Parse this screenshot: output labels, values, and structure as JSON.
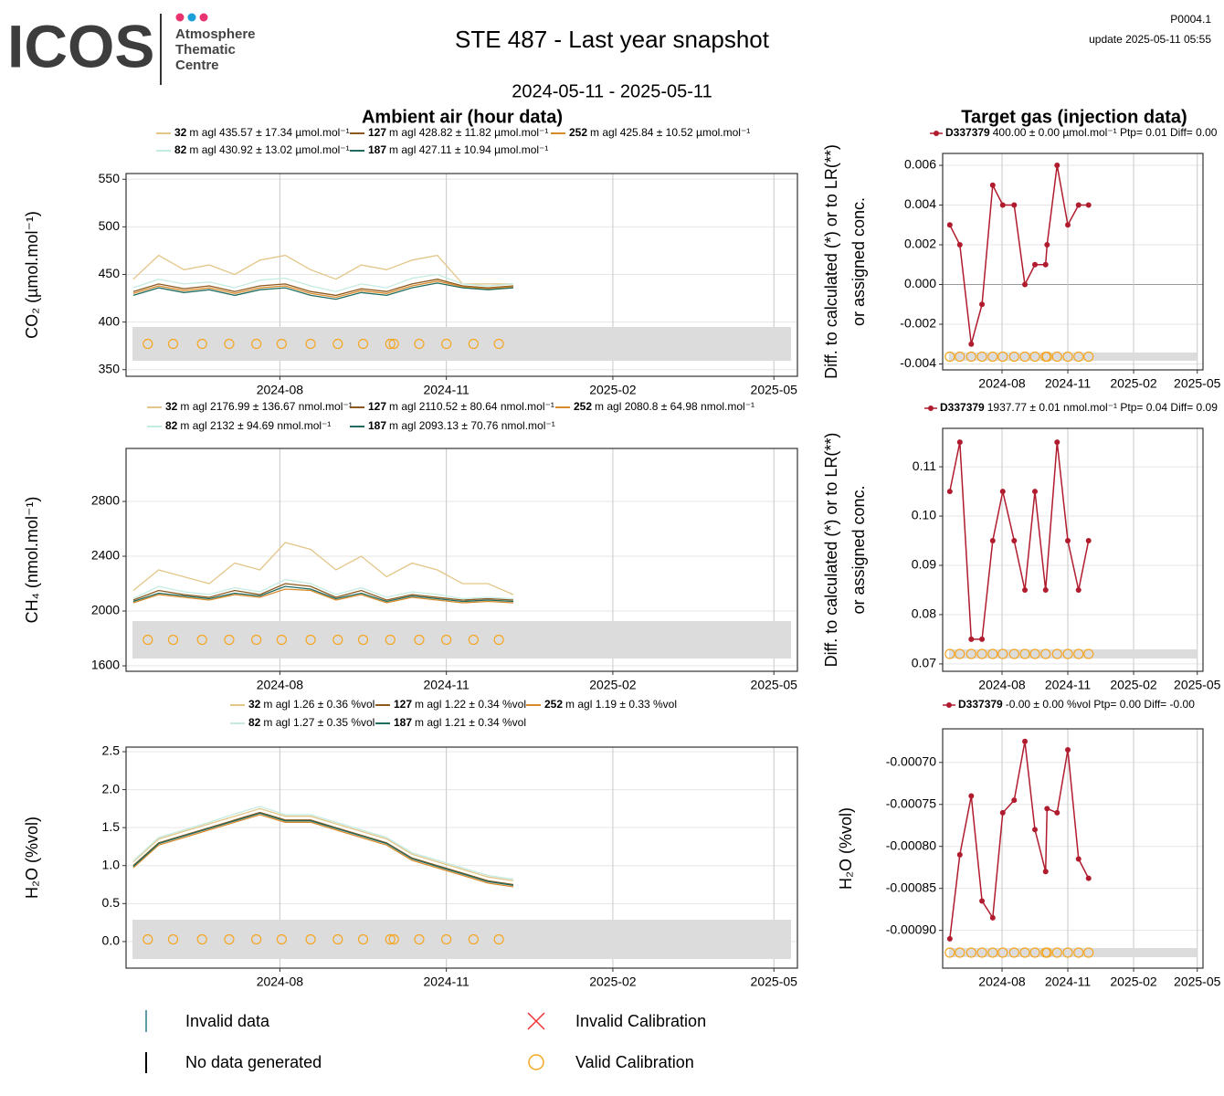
{
  "header": {
    "logo": "ICOS",
    "org": [
      "Atmosphere",
      "Thematic",
      "Centre"
    ],
    "title": "STE 487 - Last year snapshot",
    "subtitle": "2024-05-11 - 2025-05-11",
    "code": "P0004.1",
    "update": "update  2025-05-11 05:55",
    "ambient": "Ambient air (hour data)",
    "target": "Target gas (injection data)"
  },
  "legend": {
    "invalid_data": "Invalid data",
    "no_data": "No data generated",
    "invalid_cal": "Invalid Calibration",
    "valid_cal": "Valid Calibration"
  },
  "chart_data": [
    {
      "type": "line",
      "ylabel": [
        "CO₂ (µmol.mol⁻¹)"
      ],
      "x": [
        "2024-05-12",
        "2024-05-26",
        "2024-06-09",
        "2024-06-23",
        "2024-07-07",
        "2024-07-21",
        "2024-08-04",
        "2024-08-18",
        "2024-09-01",
        "2024-09-15",
        "2024-09-29",
        "2024-10-13",
        "2024-10-27",
        "2024-11-10",
        "2024-11-24",
        "2024-12-08"
      ],
      "xlim": [
        "2024-05-08",
        "2025-05-14"
      ],
      "xticks": [
        {
          "value": "2024-08-01",
          "label": "2024-08"
        },
        {
          "value": "2024-11-01",
          "label": "2024-11"
        },
        {
          "value": "2025-02-01",
          "label": "2025-02"
        },
        {
          "value": "2025-05-01",
          "label": "2025-05"
        }
      ],
      "ylim": [
        343,
        556
      ],
      "yticks": [
        350,
        400,
        450,
        500,
        550
      ],
      "grid": true,
      "series": [
        {
          "name": "32",
          "label": "m agl 435.57 ± 17.34 µmol.mol⁻¹",
          "color": "#e3c688",
          "values": [
            445,
            470,
            455,
            460,
            450,
            465,
            470,
            455,
            445,
            460,
            455,
            465,
            470,
            440,
            440,
            440
          ]
        },
        {
          "name": "127",
          "label": "m agl 428.82 ± 11.82 µmol.mol⁻¹",
          "color": "#8c5a1e",
          "values": [
            432,
            440,
            435,
            438,
            432,
            438,
            440,
            432,
            428,
            435,
            432,
            440,
            445,
            438,
            436,
            438
          ]
        },
        {
          "name": "252",
          "label": "m agl 425.84 ± 10.52 µmol.mol⁻¹",
          "color": "#d98a2b",
          "values": [
            430,
            438,
            433,
            436,
            430,
            436,
            438,
            430,
            426,
            433,
            430,
            438,
            443,
            437,
            435,
            437
          ]
        },
        {
          "name": "82",
          "label": "m agl 430.92 ± 13.02 µmol.mol⁻¹",
          "color": "#c4ebe1",
          "values": [
            436,
            445,
            440,
            442,
            436,
            444,
            446,
            438,
            432,
            440,
            436,
            446,
            450,
            440,
            438,
            440
          ]
        },
        {
          "name": "187",
          "label": "m agl 427.11 ± 10.94 µmol.mol⁻¹",
          "color": "#1f6b5e",
          "values": [
            428,
            436,
            431,
            434,
            428,
            434,
            436,
            428,
            424,
            431,
            428,
            436,
            441,
            436,
            434,
            436
          ]
        }
      ]
    },
    {
      "type": "line",
      "ylabel": [
        "Diff. to calculated (*) or to LR(**)",
        "or assigned conc."
      ],
      "x": [
        "2024-05-20",
        "2024-06-03",
        "2024-06-19",
        "2024-07-04",
        "2024-07-19",
        "2024-08-02",
        "2024-08-18",
        "2024-09-02",
        "2024-09-16",
        "2024-10-01",
        "2024-10-03",
        "2024-10-17",
        "2024-11-01",
        "2024-11-16",
        "2024-11-30"
      ],
      "xlim": [
        "2024-05-10",
        "2025-05-09"
      ],
      "xticks": [
        {
          "value": "2024-08-01",
          "label": "2024-08"
        },
        {
          "value": "2024-11-01",
          "label": "2024-11"
        },
        {
          "value": "2025-02-01",
          "label": "2025-02"
        },
        {
          "value": "2025-05-01",
          "label": "2025-05"
        }
      ],
      "ylim": [
        -0.0043,
        0.0066
      ],
      "yticks": [
        -0.004,
        -0.002,
        {
          "value": 0,
          "label": "0.000"
        },
        0.002,
        0.004,
        0.006
      ],
      "grid": true,
      "series": [
        {
          "name": "D337379",
          "label": "400.00 ± 0.00 µmol.mol⁻¹ Ptp= 0.01 Diff= 0.00",
          "color": "#b01c2e",
          "values": [
            0.003,
            0.002,
            -0.003,
            -0.001,
            0.005,
            0.004,
            0.004,
            0,
            0.001,
            0.001,
            0.002,
            0.006,
            0.003,
            0.004,
            0.004
          ]
        }
      ]
    },
    {
      "type": "line",
      "ylabel": [
        "CH₄ (nmol.mol⁻¹)"
      ],
      "x": [
        "2024-05-12",
        "2024-05-26",
        "2024-06-09",
        "2024-06-23",
        "2024-07-07",
        "2024-07-21",
        "2024-08-04",
        "2024-08-18",
        "2024-09-01",
        "2024-09-15",
        "2024-09-29",
        "2024-10-13",
        "2024-10-27",
        "2024-11-10",
        "2024-11-24",
        "2024-12-08"
      ],
      "xlim": [
        "2024-05-08",
        "2025-05-14"
      ],
      "xticks": [
        {
          "value": "2024-08-01",
          "label": "2024-08"
        },
        {
          "value": "2024-11-01",
          "label": "2024-11"
        },
        {
          "value": "2025-02-01",
          "label": "2025-02"
        },
        {
          "value": "2025-05-01",
          "label": "2025-05"
        }
      ],
      "ylim": [
        1560,
        3187
      ],
      "yticks": [
        1600,
        2000,
        2400,
        2800
      ],
      "grid": true,
      "series": [
        {
          "name": "32",
          "label": "m agl 2176.99 ± 136.67 nmol.mol⁻¹",
          "color": "#e3c688",
          "values": [
            2150,
            2300,
            2250,
            2200,
            2350,
            2300,
            2500,
            2450,
            2300,
            2400,
            2250,
            2350,
            2300,
            2200,
            2200,
            2120
          ]
        },
        {
          "name": "127",
          "label": "m agl 2110.52 ± 80.64 nmol.mol⁻¹",
          "color": "#8c5a1e",
          "values": [
            2080,
            2150,
            2120,
            2100,
            2150,
            2120,
            2200,
            2180,
            2100,
            2150,
            2080,
            2120,
            2100,
            2080,
            2090,
            2080
          ]
        },
        {
          "name": "252",
          "label": "m agl 2080.8 ± 64.98 nmol.mol⁻¹",
          "color": "#d98a2b",
          "values": [
            2060,
            2120,
            2100,
            2080,
            2120,
            2100,
            2160,
            2150,
            2080,
            2120,
            2060,
            2100,
            2080,
            2060,
            2070,
            2060
          ]
        },
        {
          "name": "82",
          "label": "m agl 2132 ± 94.69 nmol.mol⁻¹",
          "color": "#c4ebe1",
          "values": [
            2090,
            2180,
            2140,
            2120,
            2170,
            2140,
            2230,
            2200,
            2120,
            2170,
            2100,
            2140,
            2120,
            2090,
            2100,
            2090
          ]
        },
        {
          "name": "187",
          "label": "m agl 2093.13 ± 70.76 nmol.mol⁻¹",
          "color": "#1f6b5e",
          "values": [
            2070,
            2130,
            2110,
            2090,
            2130,
            2110,
            2180,
            2160,
            2090,
            2130,
            2070,
            2110,
            2090,
            2070,
            2080,
            2070
          ]
        }
      ]
    },
    {
      "type": "line",
      "ylabel": [
        "Diff. to calculated (*) or to LR(**)",
        "or assigned conc."
      ],
      "x": [
        "2024-05-20",
        "2024-06-03",
        "2024-06-19",
        "2024-07-04",
        "2024-07-19",
        "2024-08-02",
        "2024-08-18",
        "2024-09-02",
        "2024-09-16",
        "2024-10-01",
        "2024-10-17",
        "2024-11-01",
        "2024-11-16",
        "2024-11-30"
      ],
      "xlim": [
        "2024-05-10",
        "2025-05-09"
      ],
      "xticks": [
        {
          "value": "2024-08-01",
          "label": "2024-08"
        },
        {
          "value": "2024-11-01",
          "label": "2024-11"
        },
        {
          "value": "2025-02-01",
          "label": "2025-02"
        },
        {
          "value": "2025-05-01",
          "label": "2025-05"
        }
      ],
      "ylim": [
        0.0685,
        0.1178
      ],
      "yticks": [
        0.07,
        0.08,
        0.09,
        {
          "value": 0.1,
          "label": "0.10"
        },
        0.11
      ],
      "grid": true,
      "series": [
        {
          "name": "D337379",
          "label": "1937.77 ± 0.01 nmol.mol⁻¹ Ptp= 0.04 Diff= 0.09",
          "color": "#b01c2e",
          "values": [
            0.105,
            0.115,
            0.075,
            0.075,
            0.095,
            0.105,
            0.095,
            0.085,
            0.105,
            0.085,
            0.115,
            0.095,
            0.085,
            0.095
          ]
        }
      ]
    },
    {
      "type": "line",
      "ylabel": [
        "H₂O (%vol)"
      ],
      "x": [
        "2024-05-12",
        "2024-05-26",
        "2024-06-09",
        "2024-06-23",
        "2024-07-07",
        "2024-07-21",
        "2024-08-04",
        "2024-08-18",
        "2024-09-01",
        "2024-09-15",
        "2024-09-29",
        "2024-10-13",
        "2024-10-27",
        "2024-11-10",
        "2024-11-24",
        "2024-12-08"
      ],
      "xlim": [
        "2024-05-08",
        "2025-05-14"
      ],
      "xticks": [
        {
          "value": "2024-08-01",
          "label": "2024-08"
        },
        {
          "value": "2024-11-01",
          "label": "2024-11"
        },
        {
          "value": "2025-02-01",
          "label": "2025-02"
        },
        {
          "value": "2025-05-01",
          "label": "2025-05"
        }
      ],
      "ylim": [
        -0.35,
        2.56
      ],
      "yticks": [
        {
          "value": 0,
          "label": "0.0"
        },
        0.5,
        {
          "value": 1,
          "label": "1.0"
        },
        1.5,
        {
          "value": 2,
          "label": "2.0"
        },
        2.5
      ],
      "grid": true,
      "series": [
        {
          "name": "32",
          "label": "m agl 1.26 ± 0.36 %vol",
          "color": "#e3c688",
          "values": [
            1.05,
            1.35,
            1.45,
            1.55,
            1.65,
            1.75,
            1.65,
            1.65,
            1.55,
            1.45,
            1.35,
            1.15,
            1.05,
            0.95,
            0.85,
            0.8
          ]
        },
        {
          "name": "127",
          "label": "m agl 1.22 ± 0.34 %vol",
          "color": "#8c5a1e",
          "values": [
            1.0,
            1.3,
            1.4,
            1.5,
            1.6,
            1.7,
            1.6,
            1.6,
            1.5,
            1.4,
            1.3,
            1.1,
            1.0,
            0.9,
            0.8,
            0.75
          ]
        },
        {
          "name": "252",
          "label": "m agl 1.19 ± 0.33 %vol",
          "color": "#d98a2b",
          "values": [
            0.97,
            1.27,
            1.37,
            1.47,
            1.57,
            1.67,
            1.57,
            1.57,
            1.47,
            1.37,
            1.27,
            1.07,
            0.97,
            0.87,
            0.77,
            0.72
          ]
        },
        {
          "name": "82",
          "label": "m agl 1.27 ± 0.35 %vol",
          "color": "#c4ebe1",
          "values": [
            1.06,
            1.37,
            1.47,
            1.57,
            1.68,
            1.78,
            1.67,
            1.67,
            1.57,
            1.47,
            1.37,
            1.17,
            1.07,
            0.97,
            0.87,
            0.82
          ]
        },
        {
          "name": "187",
          "label": "m agl 1.21 ± 0.34 %vol",
          "color": "#1f6b5e",
          "values": [
            0.99,
            1.29,
            1.39,
            1.49,
            1.59,
            1.69,
            1.59,
            1.59,
            1.49,
            1.39,
            1.29,
            1.09,
            0.99,
            0.89,
            0.79,
            0.74
          ]
        }
      ]
    },
    {
      "type": "line",
      "ylabel": [
        "H₂O (%vol)"
      ],
      "x": [
        "2024-05-20",
        "2024-06-03",
        "2024-06-19",
        "2024-07-04",
        "2024-07-19",
        "2024-08-02",
        "2024-08-18",
        "2024-09-02",
        "2024-09-16",
        "2024-10-01",
        "2024-10-03",
        "2024-10-17",
        "2024-11-01",
        "2024-11-16",
        "2024-11-30"
      ],
      "xlim": [
        "2024-05-10",
        "2025-05-09"
      ],
      "xticks": [
        {
          "value": "2024-08-01",
          "label": "2024-08"
        },
        {
          "value": "2024-11-01",
          "label": "2024-11"
        },
        {
          "value": "2025-02-01",
          "label": "2025-02"
        },
        {
          "value": "2025-05-01",
          "label": "2025-05"
        }
      ],
      "ylim": [
        -0.000945,
        -0.00066
      ],
      "yticks": [
        {
          "value": -0.0009,
          "label": "-0.00090"
        },
        {
          "value": -0.00085,
          "label": "-0.00085"
        },
        {
          "value": -0.0008,
          "label": "-0.00080"
        },
        {
          "value": -0.00075,
          "label": "-0.00075"
        },
        {
          "value": -0.0007,
          "label": "-0.00070"
        }
      ],
      "grid": true,
      "series": [
        {
          "name": "D337379",
          "label": "-0.00 ± 0.00 %vol Ptp= 0.00 Diff= -0.00",
          "color": "#b01c2e",
          "values": [
            -0.00091,
            -0.00081,
            -0.00074,
            -0.000865,
            -0.000885,
            -0.00076,
            -0.000745,
            -0.000675,
            -0.00078,
            -0.00083,
            -0.000755,
            -0.00076,
            -0.000685,
            -0.000815,
            -0.000838
          ]
        }
      ]
    }
  ]
}
